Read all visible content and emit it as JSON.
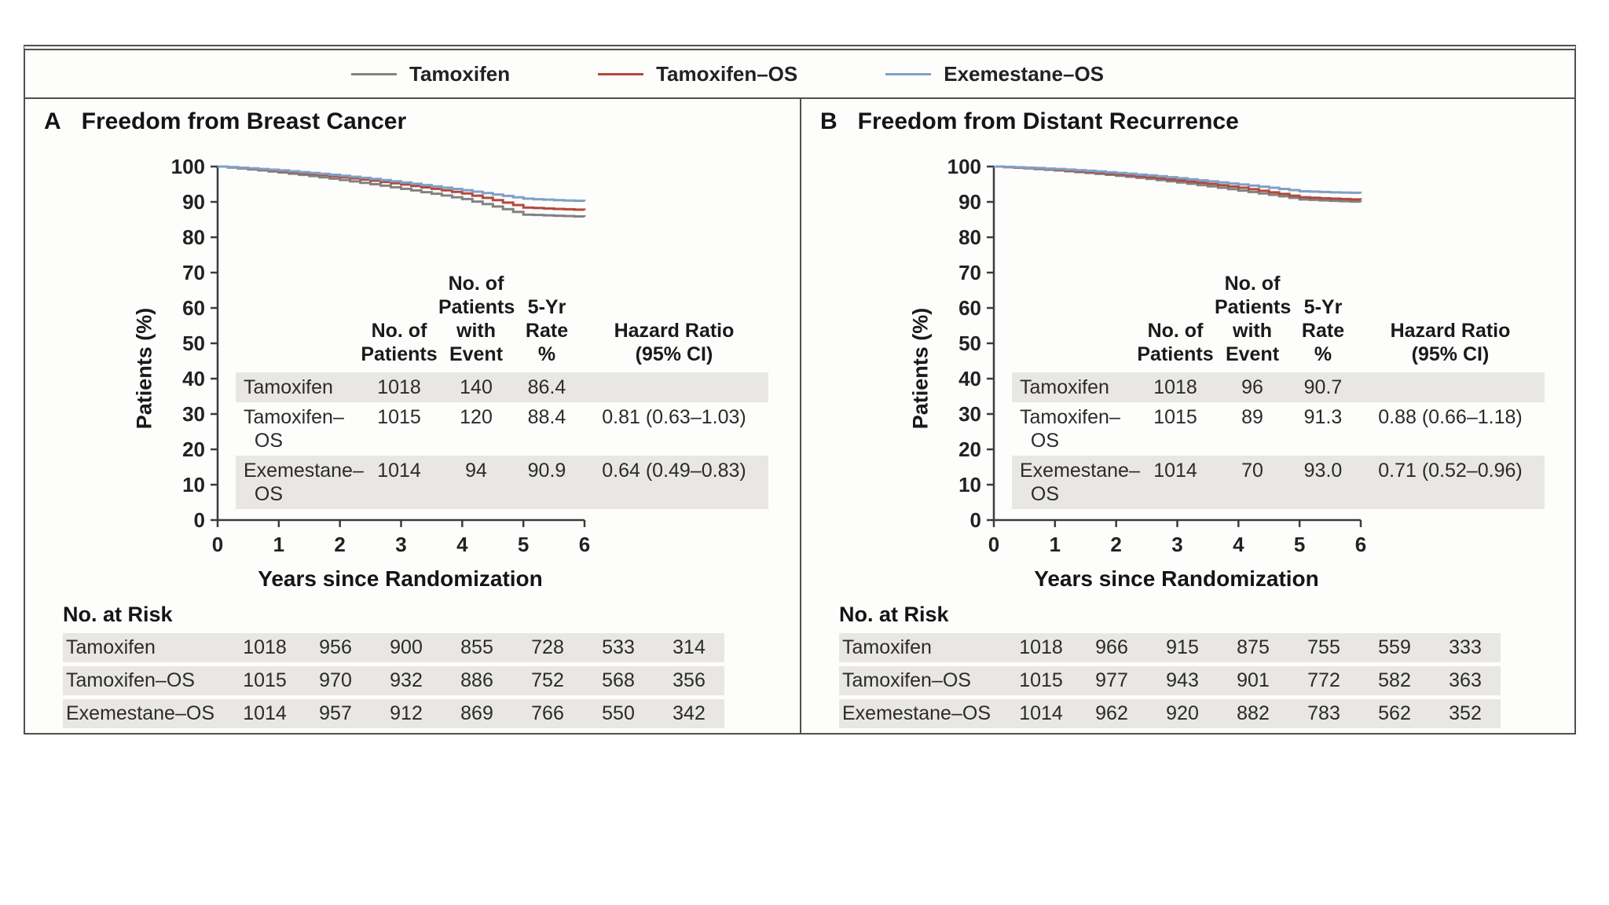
{
  "legend": {
    "items": [
      {
        "label": "Tamoxifen",
        "color": "#828282"
      },
      {
        "label": "Tamoxifen–OS",
        "color": "#b24a3c"
      },
      {
        "label": "Exemestane–OS",
        "color": "#7fa0c7"
      }
    ]
  },
  "chart_data": [
    {
      "type": "line",
      "panel_letter": "A",
      "title": "Freedom from Breast Cancer",
      "xlabel": "Years since Randomization",
      "ylabel": "Patients (%)",
      "xlim": [
        0,
        6
      ],
      "ylim": [
        0,
        100
      ],
      "xticks": [
        0,
        1,
        2,
        3,
        4,
        5,
        6
      ],
      "yticks": [
        0,
        10,
        20,
        30,
        40,
        50,
        60,
        70,
        80,
        90,
        100
      ],
      "grid": false,
      "series": [
        {
          "name": "Tamoxifen",
          "color": "#828282",
          "x": [
            0,
            0.5,
            1,
            1.5,
            2,
            2.5,
            3,
            3.5,
            4,
            4.5,
            5,
            5.5,
            6
          ],
          "y": [
            100,
            99.2,
            98.3,
            97.3,
            96.2,
            95.0,
            93.7,
            92.3,
            90.8,
            88.7,
            86.4,
            86.1,
            85.8
          ]
        },
        {
          "name": "Tamoxifen–OS",
          "color": "#b24a3c",
          "x": [
            0,
            0.5,
            1,
            1.5,
            2,
            2.5,
            3,
            3.5,
            4,
            4.5,
            5,
            5.5,
            6
          ],
          "y": [
            100,
            99.4,
            98.7,
            97.9,
            97.0,
            96.0,
            94.9,
            93.7,
            92.4,
            90.5,
            88.4,
            88.0,
            87.7
          ]
        },
        {
          "name": "Exemestane–OS",
          "color": "#7fa0c7",
          "x": [
            0,
            0.5,
            1,
            1.5,
            2,
            2.5,
            3,
            3.5,
            4,
            4.5,
            5,
            5.5,
            6
          ],
          "y": [
            100,
            99.5,
            98.9,
            98.2,
            97.4,
            96.5,
            95.5,
            94.4,
            93.3,
            92.1,
            90.9,
            90.5,
            90.2
          ]
        }
      ],
      "stats_table": {
        "headers": {
          "patients": "No. of\nPatients",
          "events": "No. of\nPatients\nwith\nEvent",
          "rate": "5-Yr\nRate\n%",
          "hr": "Hazard Ratio\n(95% CI)"
        },
        "rows": [
          {
            "name": "Tamoxifen",
            "patients": "1018",
            "events": "140",
            "rate": "86.4",
            "hr": ""
          },
          {
            "name": "Tamoxifen–\n  OS",
            "patients": "1015",
            "events": "120",
            "rate": "88.4",
            "hr": "0.81 (0.63–1.03)"
          },
          {
            "name": "Exemestane–\n  OS",
            "patients": "1014",
            "events": "94",
            "rate": "90.9",
            "hr": "0.64 (0.49–0.83)"
          }
        ]
      },
      "risk_table": {
        "title": "No. at Risk",
        "rows": [
          {
            "name": "Tamoxifen",
            "values": [
              "1018",
              "956",
              "900",
              "855",
              "728",
              "533",
              "314"
            ]
          },
          {
            "name": "Tamoxifen–OS",
            "values": [
              "1015",
              "970",
              "932",
              "886",
              "752",
              "568",
              "356"
            ]
          },
          {
            "name": "Exemestane–OS",
            "values": [
              "1014",
              "957",
              "912",
              "869",
              "766",
              "550",
              "342"
            ]
          }
        ]
      }
    },
    {
      "type": "line",
      "panel_letter": "B",
      "title": "Freedom from Distant Recurrence",
      "xlabel": "Years since Randomization",
      "ylabel": "Patients (%)",
      "xlim": [
        0,
        6
      ],
      "ylim": [
        0,
        100
      ],
      "xticks": [
        0,
        1,
        2,
        3,
        4,
        5,
        6
      ],
      "yticks": [
        0,
        10,
        20,
        30,
        40,
        50,
        60,
        70,
        80,
        90,
        100
      ],
      "grid": false,
      "series": [
        {
          "name": "Tamoxifen",
          "color": "#828282",
          "x": [
            0,
            0.5,
            1,
            1.5,
            2,
            2.5,
            3,
            3.5,
            4,
            4.5,
            5,
            5.5,
            6
          ],
          "y": [
            100,
            99.5,
            98.9,
            98.2,
            97.4,
            96.5,
            95.5,
            94.4,
            93.2,
            92.0,
            90.7,
            90.3,
            90.0
          ]
        },
        {
          "name": "Tamoxifen–OS",
          "color": "#b24a3c",
          "x": [
            0,
            0.5,
            1,
            1.5,
            2,
            2.5,
            3,
            3.5,
            4,
            4.5,
            5,
            5.5,
            6
          ],
          "y": [
            100,
            99.6,
            99.1,
            98.5,
            97.8,
            97.0,
            96.1,
            95.1,
            94.0,
            92.7,
            91.3,
            90.9,
            90.6
          ]
        },
        {
          "name": "Exemestane–OS",
          "color": "#7fa0c7",
          "x": [
            0,
            0.5,
            1,
            1.5,
            2,
            2.5,
            3,
            3.5,
            4,
            4.5,
            5,
            5.5,
            6
          ],
          "y": [
            100,
            99.7,
            99.3,
            98.8,
            98.2,
            97.5,
            96.7,
            95.8,
            94.9,
            94.0,
            93.0,
            92.7,
            92.5
          ]
        }
      ],
      "stats_table": {
        "headers": {
          "patients": "No. of\nPatients",
          "events": "No. of\nPatients\nwith\nEvent",
          "rate": "5-Yr\nRate\n%",
          "hr": "Hazard Ratio\n(95% CI)"
        },
        "rows": [
          {
            "name": "Tamoxifen",
            "patients": "1018",
            "events": "96",
            "rate": "90.7",
            "hr": ""
          },
          {
            "name": "Tamoxifen–\n  OS",
            "patients": "1015",
            "events": "89",
            "rate": "91.3",
            "hr": "0.88 (0.66–1.18)"
          },
          {
            "name": "Exemestane–\n  OS",
            "patients": "1014",
            "events": "70",
            "rate": "93.0",
            "hr": "0.71 (0.52–0.96)"
          }
        ]
      },
      "risk_table": {
        "title": "No. at Risk",
        "rows": [
          {
            "name": "Tamoxifen",
            "values": [
              "1018",
              "966",
              "915",
              "875",
              "755",
              "559",
              "333"
            ]
          },
          {
            "name": "Tamoxifen–OS",
            "values": [
              "1015",
              "977",
              "943",
              "901",
              "772",
              "582",
              "363"
            ]
          },
          {
            "name": "Exemestane–OS",
            "values": [
              "1014",
              "962",
              "920",
              "882",
              "783",
              "562",
              "352"
            ]
          }
        ]
      }
    }
  ]
}
